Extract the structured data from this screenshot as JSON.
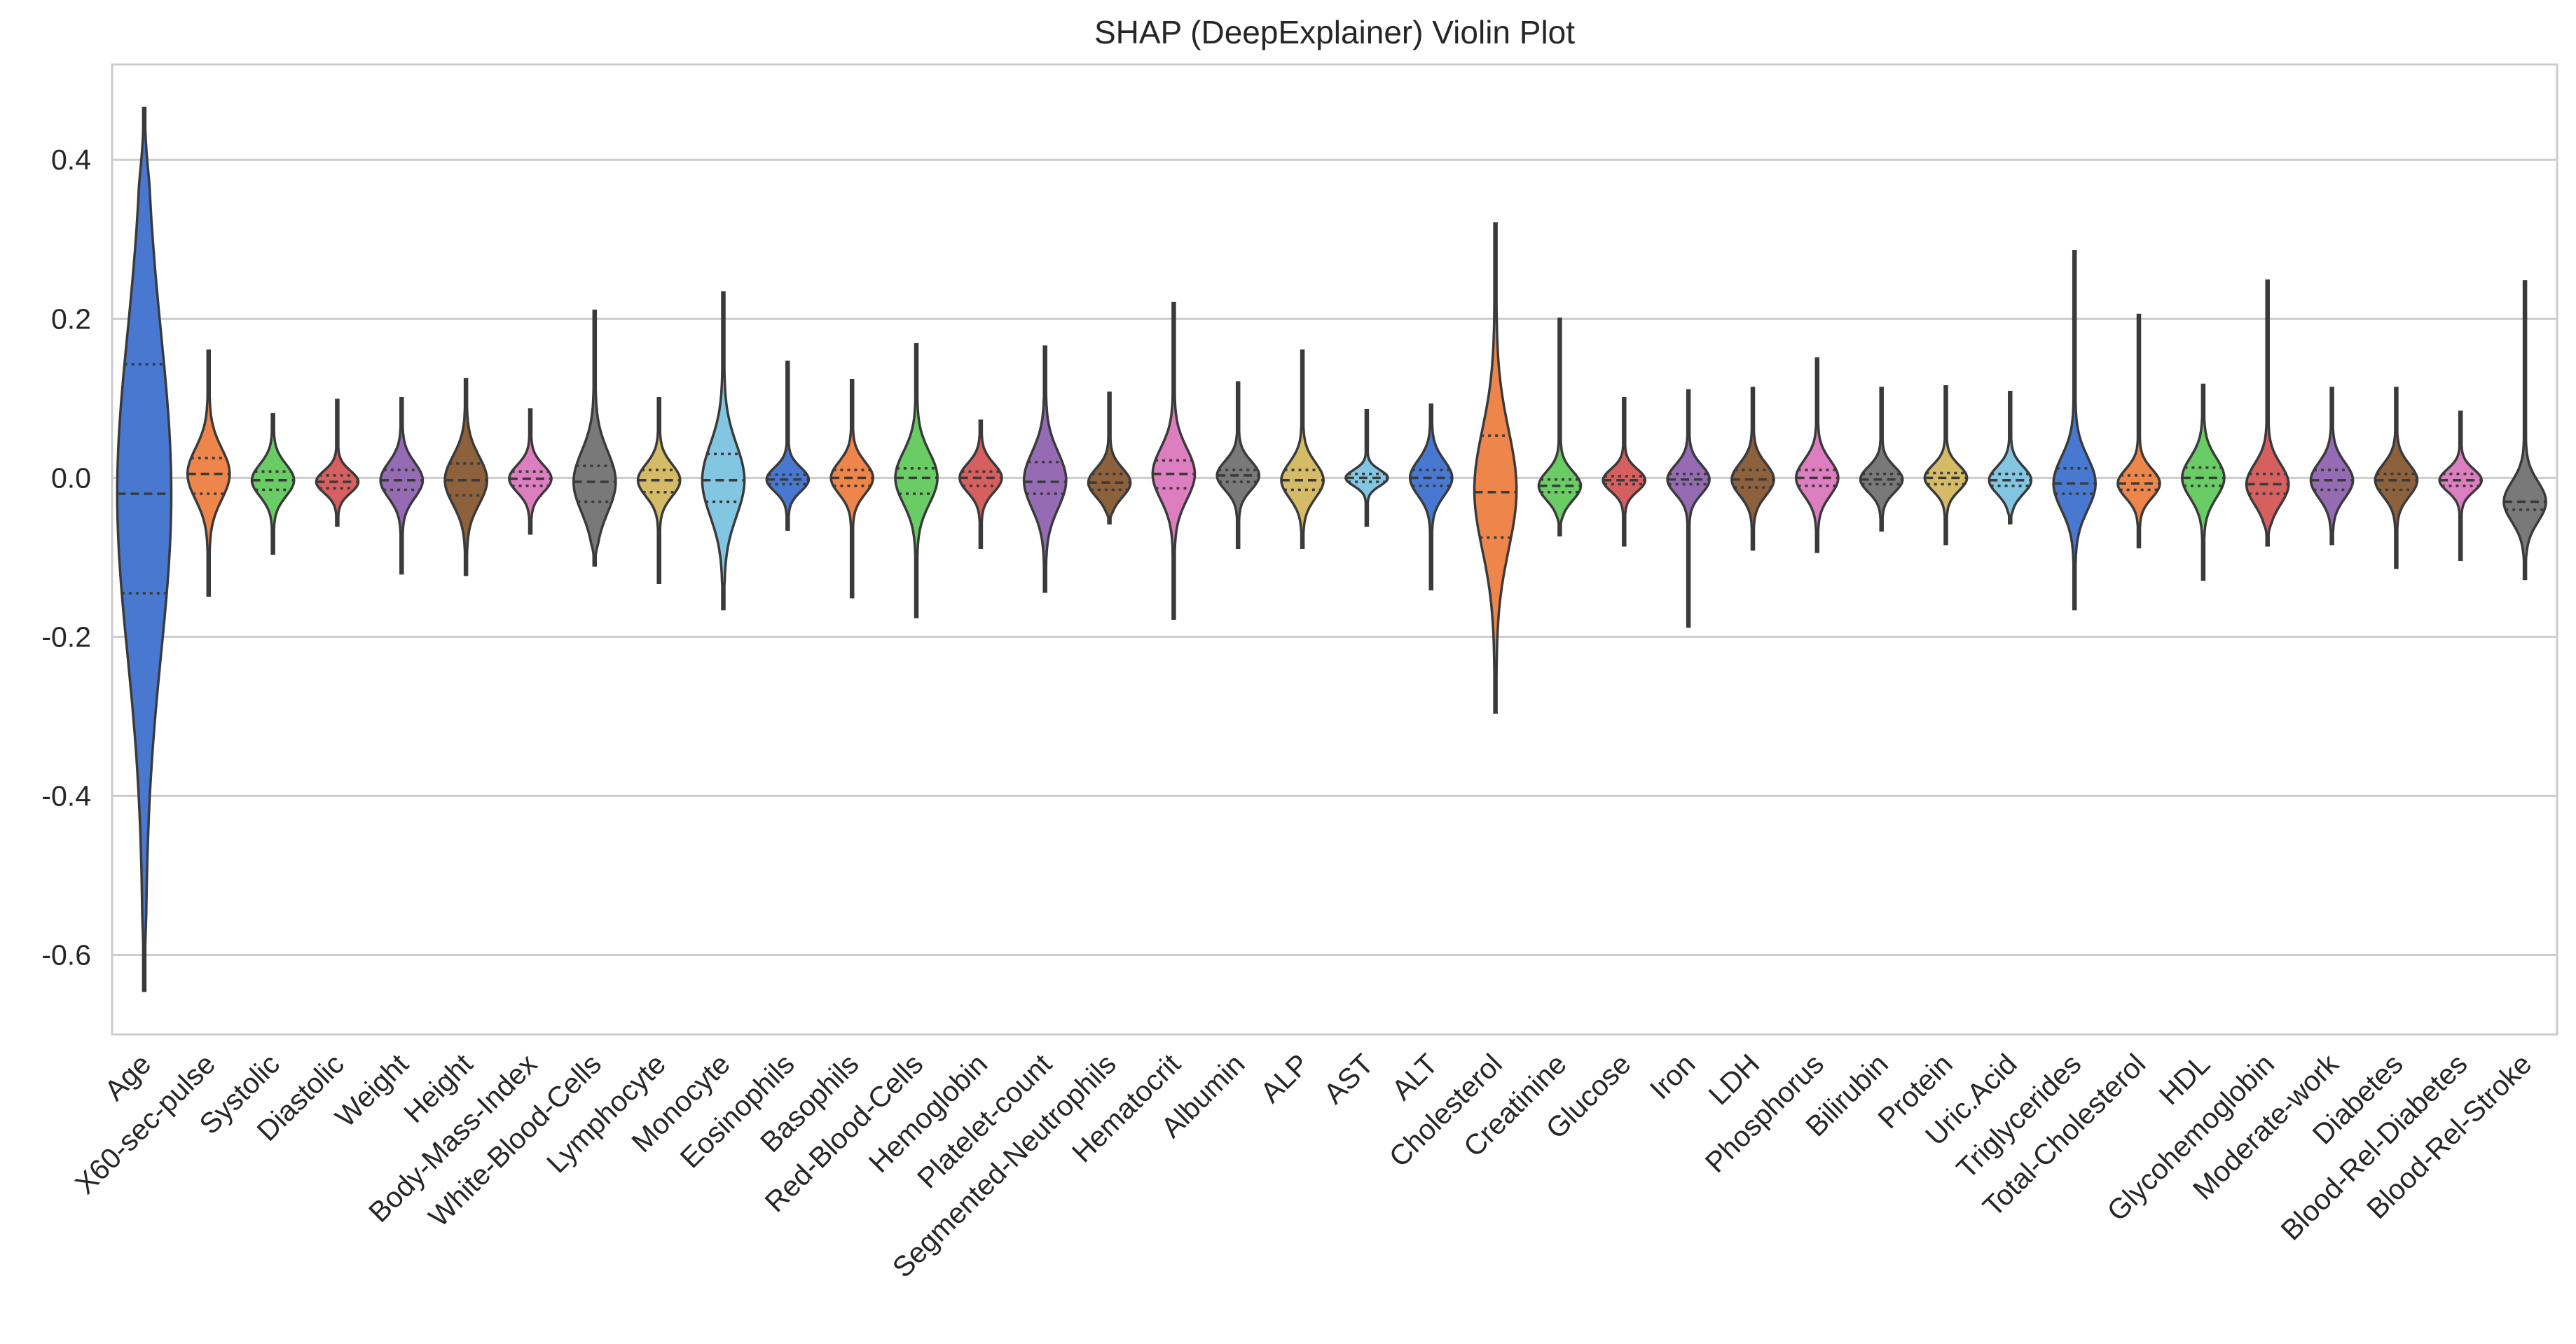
{
  "chart_data": {
    "type": "violin",
    "title": "SHAP (DeepExplainer) Violin Plot",
    "xlabel": "",
    "ylabel": "",
    "ylim": [
      -0.7,
      0.52
    ],
    "yticks": [
      {
        "value": 0.4,
        "label": "0.4"
      },
      {
        "value": 0.2,
        "label": "0.2"
      },
      {
        "value": 0.0,
        "label": "0.0"
      },
      {
        "value": -0.2,
        "label": "-0.2"
      },
      {
        "value": -0.4,
        "label": "-0.4"
      },
      {
        "value": -0.6,
        "label": "-0.6"
      }
    ],
    "grid": "horizontal",
    "inner": "quartile",
    "palette": [
      "#4878d0",
      "#ee854a",
      "#6acc64",
      "#d65f5f",
      "#956cb4",
      "#8c613c",
      "#dc7ec0",
      "#797979",
      "#d5bb67",
      "#82c6e2"
    ],
    "outline_color": "#3a3a3a",
    "categories": [
      "Age",
      "X60-sec-pulse",
      "Systolic",
      "Diastolic",
      "Weight",
      "Height",
      "Body-Mass-Index",
      "White-Blood-Cells",
      "Lymphocyte",
      "Monocyte",
      "Eosinophils",
      "Basophils",
      "Red-Blood-Cells",
      "Hemoglobin",
      "Platelet-count",
      "Segmented-Neutrophils",
      "Hematocrit",
      "Albumin",
      "ALP",
      "AST",
      "ALT",
      "Cholesterol",
      "Creatinine",
      "Glucose",
      "Iron",
      "LDH",
      "Phosphorus",
      "Bilirubin",
      "Protein",
      "Uric.Acid",
      "Triglycerides",
      "Total-Cholesterol",
      "HDL",
      "Glycohemoglobin",
      "Moderate-work",
      "Diabetes",
      "Blood-Rel-Diabetes",
      "Blood-Rel-Stroke"
    ],
    "violins": [
      {
        "min": -0.645,
        "max": 0.465,
        "q1": -0.145,
        "median": -0.02,
        "q3": 0.143,
        "sd": 0.2,
        "center": -0.02,
        "tails": null
      },
      {
        "min": -0.148,
        "max": 0.16,
        "q1": -0.02,
        "median": 0.005,
        "q3": 0.025,
        "sd": 0.032,
        "center": 0.005
      },
      {
        "min": -0.095,
        "max": 0.08,
        "q1": -0.015,
        "median": -0.003,
        "q3": 0.008,
        "sd": 0.02,
        "center": -0.003
      },
      {
        "min": -0.06,
        "max": 0.098,
        "q1": -0.013,
        "median": -0.005,
        "q3": 0.003,
        "sd": 0.014,
        "center": -0.005
      },
      {
        "min": -0.12,
        "max": 0.1,
        "q1": -0.015,
        "median": -0.003,
        "q3": 0.01,
        "sd": 0.022,
        "center": -0.003
      },
      {
        "min": -0.122,
        "max": 0.124,
        "q1": -0.022,
        "median": -0.003,
        "q3": 0.018,
        "sd": 0.03,
        "center": -0.003
      },
      {
        "min": -0.07,
        "max": 0.086,
        "q1": -0.01,
        "median": -0.001,
        "q3": 0.008,
        "sd": 0.017,
        "center": -0.001
      },
      {
        "min": -0.11,
        "max": 0.21,
        "q1": -0.03,
        "median": -0.005,
        "q3": 0.015,
        "sd": 0.038,
        "center": -0.005
      },
      {
        "min": -0.132,
        "max": 0.1,
        "q1": -0.018,
        "median": -0.003,
        "q3": 0.01,
        "sd": 0.02,
        "center": -0.003
      },
      {
        "min": -0.165,
        "max": 0.233,
        "q1": -0.03,
        "median": -0.003,
        "q3": 0.03,
        "sd": 0.045,
        "center": -0.003
      },
      {
        "min": -0.065,
        "max": 0.146,
        "q1": -0.008,
        "median": -0.002,
        "q3": 0.004,
        "sd": 0.015,
        "center": -0.002
      },
      {
        "min": -0.15,
        "max": 0.123,
        "q1": -0.01,
        "median": 0.0,
        "q3": 0.01,
        "sd": 0.02,
        "center": 0.0
      },
      {
        "min": -0.175,
        "max": 0.168,
        "q1": -0.02,
        "median": 0.0,
        "q3": 0.012,
        "sd": 0.032,
        "center": 0.0
      },
      {
        "min": -0.088,
        "max": 0.072,
        "q1": -0.01,
        "median": 0.0,
        "q3": 0.008,
        "sd": 0.018,
        "center": 0.0
      },
      {
        "min": -0.143,
        "max": 0.165,
        "q1": -0.02,
        "median": -0.005,
        "q3": 0.02,
        "sd": 0.035,
        "center": -0.003
      },
      {
        "min": -0.057,
        "max": 0.107,
        "q1": -0.015,
        "median": -0.006,
        "q3": 0.005,
        "sd": 0.018,
        "center": -0.006
      },
      {
        "min": -0.177,
        "max": 0.22,
        "q1": -0.013,
        "median": 0.005,
        "q3": 0.022,
        "sd": 0.032,
        "center": 0.005
      },
      {
        "min": -0.088,
        "max": 0.12,
        "q1": -0.005,
        "median": 0.003,
        "q3": 0.01,
        "sd": 0.018,
        "center": 0.003
      },
      {
        "min": -0.088,
        "max": 0.16,
        "q1": -0.015,
        "median": -0.003,
        "q3": 0.01,
        "sd": 0.022,
        "center": -0.003
      },
      {
        "min": -0.06,
        "max": 0.085,
        "q1": -0.005,
        "median": 0.0,
        "q3": 0.005,
        "sd": 0.01,
        "center": 0.0
      },
      {
        "min": -0.14,
        "max": 0.092,
        "q1": -0.01,
        "median": 0.0,
        "q3": 0.01,
        "sd": 0.022,
        "center": 0.0
      },
      {
        "min": -0.295,
        "max": 0.32,
        "q1": -0.075,
        "median": -0.018,
        "q3": 0.053,
        "sd": 0.075,
        "center": -0.015
      },
      {
        "min": -0.072,
        "max": 0.2,
        "q1": -0.018,
        "median": -0.01,
        "q3": -0.002,
        "sd": 0.018,
        "center": -0.01
      },
      {
        "min": -0.085,
        "max": 0.1,
        "q1": -0.008,
        "median": -0.003,
        "q3": 0.002,
        "sd": 0.014,
        "center": -0.003
      },
      {
        "min": -0.187,
        "max": 0.11,
        "q1": -0.008,
        "median": -0.002,
        "q3": 0.005,
        "sd": 0.018,
        "center": -0.002
      },
      {
        "min": -0.09,
        "max": 0.113,
        "q1": -0.012,
        "median": -0.002,
        "q3": 0.01,
        "sd": 0.02,
        "center": -0.002
      },
      {
        "min": -0.093,
        "max": 0.15,
        "q1": -0.01,
        "median": 0.0,
        "q3": 0.01,
        "sd": 0.022,
        "center": 0.0
      },
      {
        "min": -0.066,
        "max": 0.113,
        "q1": -0.008,
        "median": -0.002,
        "q3": 0.005,
        "sd": 0.016,
        "center": -0.002
      },
      {
        "min": -0.083,
        "max": 0.115,
        "q1": -0.008,
        "median": 0.0,
        "q3": 0.006,
        "sd": 0.016,
        "center": 0.0
      },
      {
        "min": -0.057,
        "max": 0.108,
        "q1": -0.01,
        "median": -0.003,
        "q3": 0.005,
        "sd": 0.017,
        "center": -0.003
      },
      {
        "min": -0.165,
        "max": 0.285,
        "q1": -0.02,
        "median": -0.007,
        "q3": 0.012,
        "sd": 0.033,
        "center": -0.007
      },
      {
        "min": -0.087,
        "max": 0.205,
        "q1": -0.015,
        "median": -0.007,
        "q3": 0.003,
        "sd": 0.018,
        "center": -0.007
      },
      {
        "min": -0.128,
        "max": 0.117,
        "q1": -0.01,
        "median": 0.0,
        "q3": 0.013,
        "sd": 0.025,
        "center": 0.0
      },
      {
        "min": -0.085,
        "max": 0.248,
        "q1": -0.02,
        "median": -0.008,
        "q3": 0.005,
        "sd": 0.025,
        "center": -0.008
      },
      {
        "min": -0.083,
        "max": 0.113,
        "q1": -0.015,
        "median": -0.003,
        "q3": 0.01,
        "sd": 0.022,
        "center": -0.003
      },
      {
        "min": -0.113,
        "max": 0.113,
        "q1": -0.015,
        "median": -0.003,
        "q3": 0.005,
        "sd": 0.02,
        "center": -0.003
      },
      {
        "min": -0.103,
        "max": 0.083,
        "q1": -0.01,
        "median": -0.003,
        "q3": 0.005,
        "sd": 0.014,
        "center": -0.003
      },
      {
        "min": -0.127,
        "max": 0.247,
        "q1": -0.04,
        "median": -0.03,
        "q3": 0.045,
        "sd": 0.025,
        "center": -0.03
      }
    ]
  }
}
